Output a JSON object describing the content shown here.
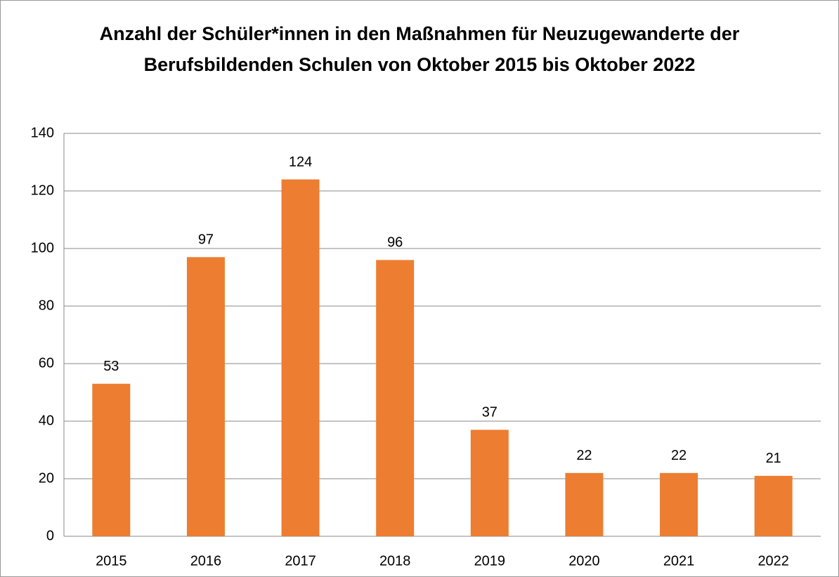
{
  "chart_data": {
    "type": "bar",
    "title": "Anzahl der Schüler*innen in den Maßnahmen für Neuzugewanderte der Berufsbildenden Schulen von Oktober 2015 bis Oktober 2022",
    "categories": [
      "2015",
      "2016",
      "2017",
      "2018",
      "2019",
      "2020",
      "2021",
      "2022"
    ],
    "values": [
      53,
      97,
      124,
      96,
      37,
      22,
      22,
      21
    ],
    "color": "#ed7d31",
    "ylim": [
      0,
      140
    ],
    "yticks": [
      0,
      20,
      40,
      60,
      80,
      100,
      120,
      140
    ],
    "grid": true
  }
}
